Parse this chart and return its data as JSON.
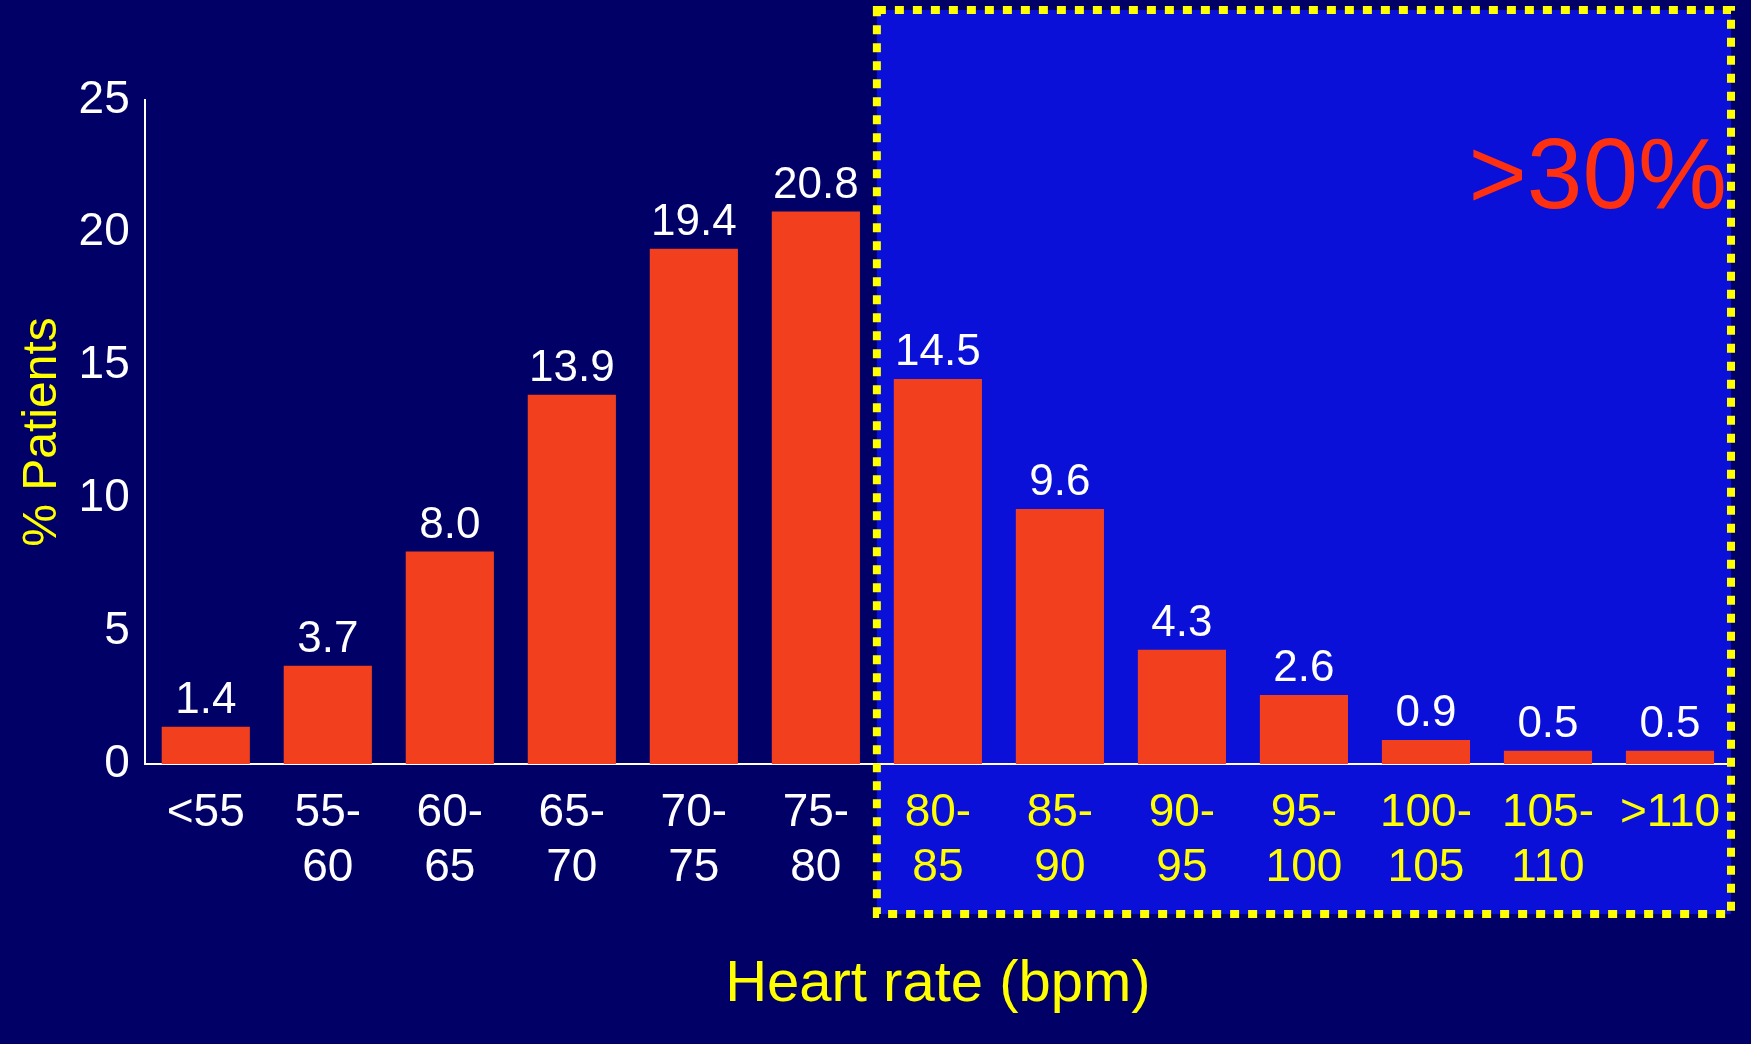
{
  "chart_data": {
    "type": "bar",
    "xlabel": "Heart rate (bpm)",
    "ylabel": "% Patients",
    "categories": [
      "<55",
      "55-60",
      "60-65",
      "65-70",
      "70-75",
      "75-80",
      "80-85",
      "85-90",
      "90-95",
      "95-100",
      "100-105",
      "105-110",
      ">110"
    ],
    "values": [
      1.4,
      3.7,
      8.0,
      13.9,
      19.4,
      20.8,
      14.5,
      9.6,
      4.3,
      2.6,
      0.9,
      0.5,
      0.5
    ],
    "value_labels": [
      "1.4",
      "3.7",
      "8.0",
      "13.9",
      "19.4",
      "20.8",
      "14.5",
      "9.6",
      "4.3",
      "2.6",
      "0.9",
      "0.5",
      "0.5"
    ],
    "color": "#f2401e",
    "ylim": [
      0,
      25
    ],
    "yticks": [
      0,
      5,
      10,
      15,
      20,
      25
    ],
    "bands": [
      {
        "axis": "x",
        "from": "80-85",
        "to": ">110",
        "label": ">30%",
        "color": "#0a10d8"
      }
    ]
  }
}
